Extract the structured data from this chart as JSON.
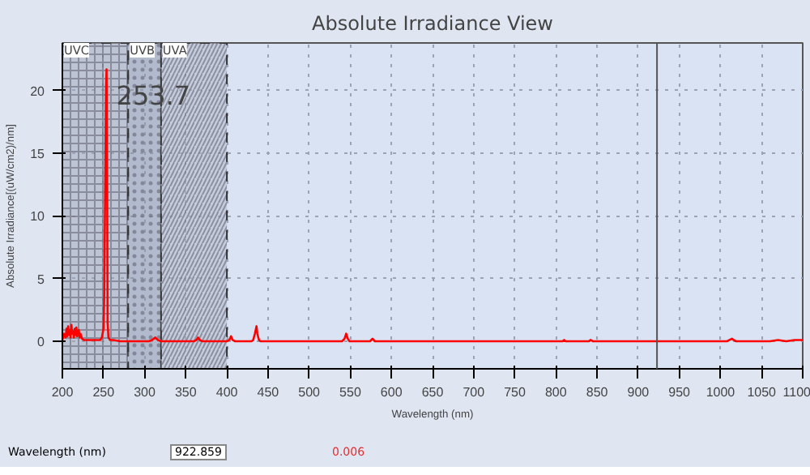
{
  "chart_data": {
    "type": "line",
    "title": "Absolute Irradiance View",
    "xlabel": "Wavelength (nm)",
    "ylabel": "Absolute Irradiance[(uW/cm2)/nm]",
    "x": [
      200,
      202,
      204,
      205,
      206,
      207,
      208,
      209,
      210,
      211,
      212,
      213,
      214,
      215,
      216,
      217,
      218,
      219,
      220,
      221,
      222,
      224,
      226,
      230,
      240,
      246,
      248,
      250,
      251,
      252,
      253,
      253.7,
      254.5,
      255,
      256,
      258,
      262,
      270,
      290,
      305,
      309,
      313,
      316,
      320,
      360,
      363,
      365,
      367,
      370,
      400,
      403,
      405,
      407,
      410,
      430,
      432,
      434,
      436,
      437,
      439,
      441,
      460,
      540,
      543,
      545,
      547,
      549,
      560,
      574,
      577,
      580,
      600,
      808,
      810,
      812,
      840,
      842,
      845,
      1008,
      1011,
      1014,
      1016,
      1019,
      1060,
      1070,
      1080,
      1090,
      1100
    ],
    "series": [
      {
        "color": "#ff0000",
        "values": [
          0.1,
          0.6,
          0.3,
          1.0,
          0.4,
          1.2,
          0.5,
          0.9,
          0.3,
          1.3,
          0.6,
          0.8,
          0.3,
          1.0,
          0.5,
          1.1,
          0.4,
          0.7,
          0.9,
          0.3,
          0.6,
          0.2,
          0.1,
          0.1,
          0.1,
          0.1,
          0.3,
          1.0,
          4.0,
          12.0,
          20.0,
          21.7,
          12.0,
          1.5,
          0.3,
          0.1,
          0.1,
          0.0,
          0.0,
          0.0,
          0.1,
          0.3,
          0.1,
          0.0,
          0.0,
          0.1,
          0.3,
          0.1,
          0.0,
          0.0,
          0.1,
          0.4,
          0.1,
          0.0,
          0.0,
          0.1,
          0.6,
          1.2,
          0.6,
          0.1,
          0.0,
          0.0,
          0.0,
          0.2,
          0.6,
          0.2,
          0.0,
          0.0,
          0.0,
          0.2,
          0.0,
          0.0,
          0.0,
          0.1,
          0.0,
          0.0,
          0.1,
          0.0,
          0.0,
          0.1,
          0.2,
          0.1,
          0.0,
          0.0,
          0.1,
          0.0,
          0.1,
          0.1
        ]
      }
    ],
    "xlim": [
      200,
      1100
    ],
    "ylim": [
      -2.2,
      23.8
    ],
    "xticks": [
      200,
      250,
      300,
      350,
      400,
      450,
      500,
      550,
      600,
      650,
      700,
      750,
      800,
      850,
      900,
      950,
      1000,
      1050,
      1100
    ],
    "yticks": [
      0,
      5,
      10,
      15,
      20
    ],
    "grid": true,
    "line_style": "solid",
    "marker": "none",
    "bands": [
      {
        "axis": "x",
        "from": 200,
        "to": 280,
        "label": "UVC",
        "color": "#a0a8b8"
      },
      {
        "axis": "x",
        "from": 280,
        "to": 320,
        "label": "UVB",
        "color": "#8a94a8"
      },
      {
        "axis": "x",
        "from": 320,
        "to": 400,
        "label": "UVA",
        "color": "#b0b8c8"
      }
    ],
    "ref_lines": [
      {
        "axis": "x",
        "value": 922.859,
        "color": "#555555"
      }
    ],
    "annotations": [
      {
        "text": "253.7",
        "x": 253.7,
        "y": 21.7
      },
      "Wavelength (nm)",
      "922.859",
      "0.006"
    ]
  }
}
